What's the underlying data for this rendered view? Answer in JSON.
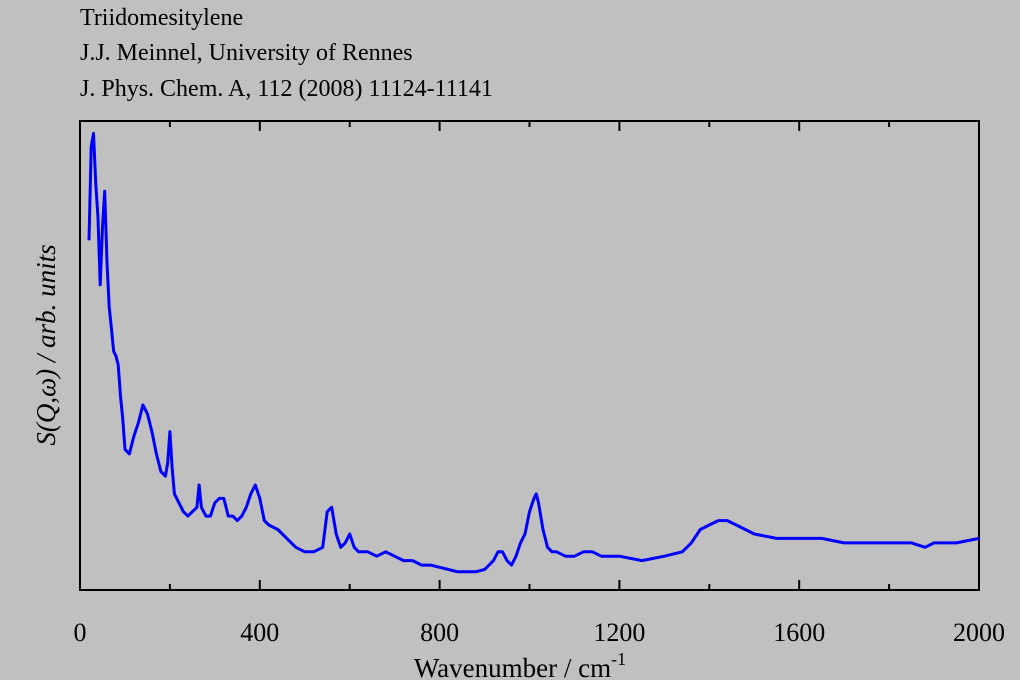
{
  "header": {
    "line1": "Triidomesitylene",
    "line2": "J.J. Meinnel, University of Rennes",
    "line3": "J. Phys. Chem. A, 112 (2008) 11124-11141"
  },
  "chart_data": {
    "type": "line",
    "title": "Triidomesitylene",
    "xlabel_main": "Wavenumber / cm",
    "xlabel_sup": "-1",
    "ylabel": "S(Q,ω) / arb. units",
    "xlim": [
      0,
      2000
    ],
    "ylim": [
      0,
      100
    ],
    "xticks": [
      0,
      400,
      800,
      1200,
      1600,
      2000
    ],
    "yticks_labeled": false,
    "grid": false,
    "line_color": "#0000ff",
    "series": [
      {
        "x": [
          20,
          25,
          30,
          35,
          40,
          45,
          50,
          55,
          60,
          65,
          70,
          75,
          80,
          85,
          90,
          95,
          100,
          110,
          120,
          130,
          140,
          150,
          160,
          170,
          180,
          190,
          195,
          200,
          205,
          210,
          220,
          230,
          240,
          250,
          260,
          265,
          270,
          280,
          290,
          300,
          310,
          320,
          330,
          340,
          350,
          360,
          370,
          380,
          390,
          400,
          410,
          420,
          440,
          460,
          480,
          500,
          520,
          540,
          550,
          560,
          570,
          580,
          590,
          600,
          610,
          620,
          640,
          660,
          680,
          700,
          720,
          740,
          760,
          780,
          800,
          820,
          840,
          860,
          880,
          900,
          920,
          930,
          940,
          950,
          960,
          970,
          980,
          990,
          1000,
          1010,
          1015,
          1020,
          1030,
          1040,
          1050,
          1060,
          1080,
          1100,
          1120,
          1140,
          1160,
          1180,
          1200,
          1250,
          1300,
          1340,
          1360,
          1380,
          1400,
          1420,
          1440,
          1460,
          1480,
          1500,
          1550,
          1600,
          1650,
          1700,
          1750,
          1800,
          1850,
          1880,
          1900,
          1950,
          2000
        ],
        "y": [
          75,
          96,
          99,
          88,
          80,
          65,
          78,
          86,
          70,
          60,
          55,
          50,
          49,
          47,
          40,
          35,
          28,
          27,
          31,
          34,
          38,
          36,
          32,
          27,
          23,
          22,
          25,
          32,
          24,
          18,
          16,
          14,
          13,
          14,
          15,
          20,
          15,
          13,
          13,
          16,
          17,
          17,
          13,
          13,
          12,
          13,
          15,
          18,
          20,
          17,
          12,
          11,
          10,
          8,
          6,
          5,
          5,
          6,
          14,
          15,
          9,
          6,
          7,
          9,
          6,
          5,
          5,
          4,
          5,
          4,
          3,
          3,
          2,
          2,
          1.5,
          1,
          0.5,
          0.5,
          0.5,
          1,
          3,
          5,
          5,
          3,
          2,
          4,
          7,
          9,
          14,
          17,
          18,
          16,
          10,
          6,
          5,
          5,
          4,
          4,
          5,
          5,
          4,
          4,
          4,
          3,
          4,
          5,
          7,
          10,
          11,
          12,
          12,
          11,
          10,
          9,
          8,
          8,
          8,
          7,
          7,
          7,
          7,
          6,
          7,
          7,
          8
        ]
      }
    ]
  }
}
